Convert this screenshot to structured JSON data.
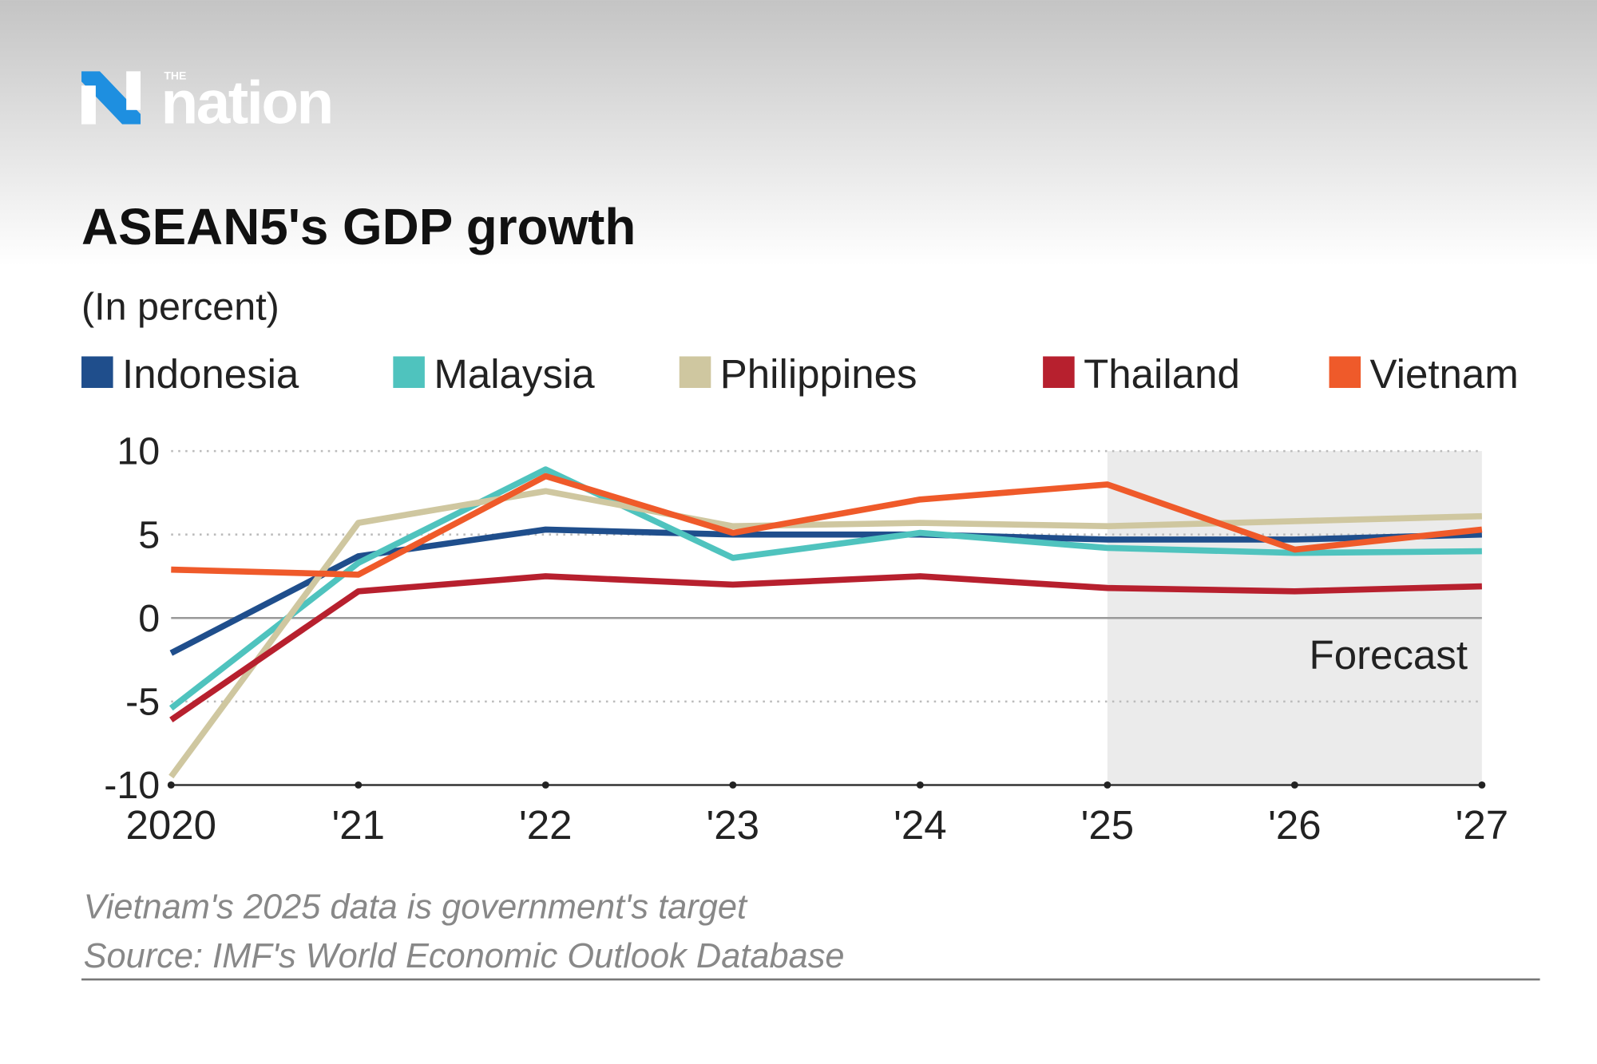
{
  "logo": {
    "small": "THE",
    "name": "nation"
  },
  "chart_data": {
    "type": "line",
    "title": "ASEAN5's GDP growth",
    "subtitle": "(In percent)",
    "categories": [
      "2020",
      "'21",
      "'22",
      "'23",
      "'24",
      "'25",
      "'26",
      "'27"
    ],
    "series": [
      {
        "name": "Indonesia",
        "color": "#1f4e8c",
        "values": [
          -2.1,
          3.7,
          5.3,
          5.0,
          5.0,
          4.7,
          4.7,
          5.0
        ]
      },
      {
        "name": "Malaysia",
        "color": "#4fc3be",
        "values": [
          -5.4,
          3.3,
          8.9,
          3.6,
          5.1,
          4.2,
          3.9,
          4.0
        ]
      },
      {
        "name": "Philippines",
        "color": "#cfc7a0",
        "values": [
          -9.5,
          5.7,
          7.6,
          5.5,
          5.7,
          5.5,
          5.8,
          6.1
        ]
      },
      {
        "name": "Thailand",
        "color": "#b7202e",
        "values": [
          -6.1,
          1.6,
          2.5,
          2.0,
          2.5,
          1.8,
          1.6,
          1.9
        ]
      },
      {
        "name": "Vietnam",
        "color": "#ef5a2a",
        "values": [
          2.9,
          2.6,
          8.5,
          5.1,
          7.1,
          8.0,
          4.1,
          5.3
        ]
      }
    ],
    "ylim": [
      -10,
      10
    ],
    "yticks": [
      -10,
      -5,
      0,
      5,
      10
    ],
    "grid": true,
    "shaded_region": {
      "label": "Forecast",
      "from": "'25",
      "to": "'27"
    },
    "notes": [
      "Vietnam's 2025 data is government's target",
      "Source: IMF's World Economic Outlook Database"
    ]
  }
}
